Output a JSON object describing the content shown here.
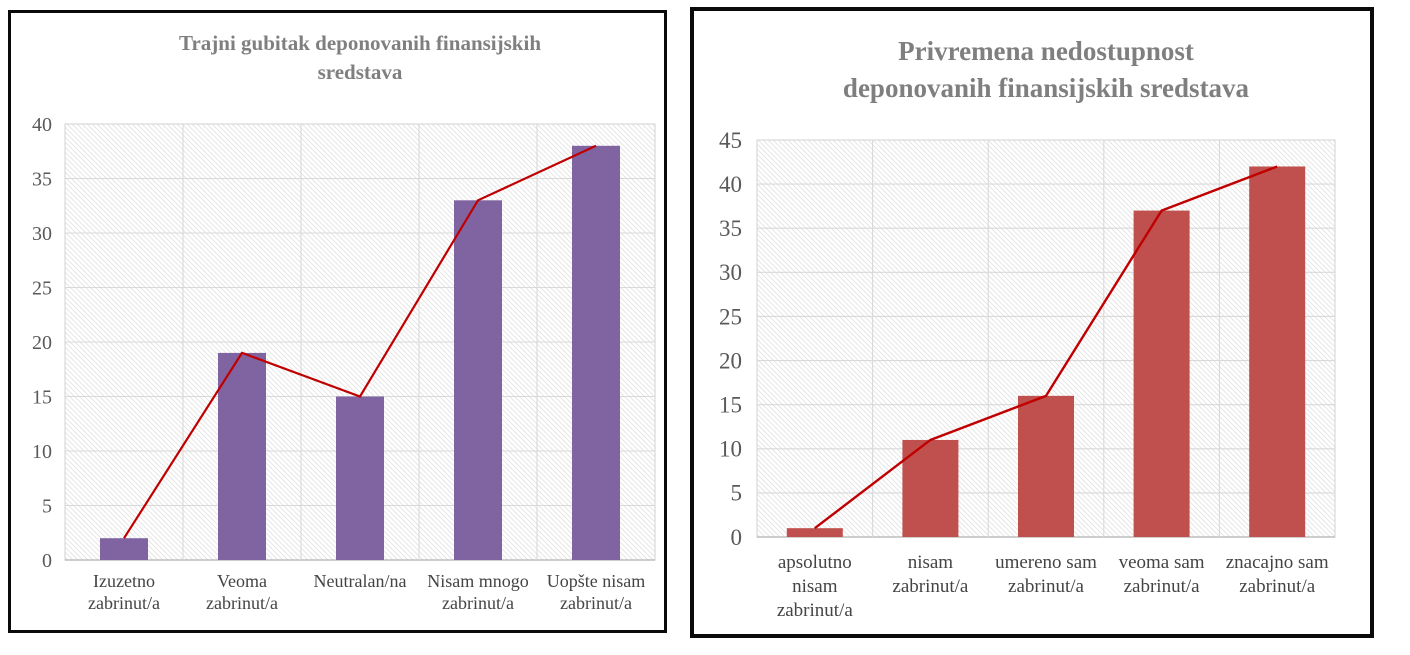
{
  "chart_data": [
    {
      "type": "bar",
      "title": "Trajni gubitak deponovanih finansijskih sredstava",
      "title_lines": [
        "Trajni gubitak deponovanih finansijskih",
        "sredstava"
      ],
      "categories": [
        "Izuzetno zabrinut/a",
        "Veoma zabrinut/a",
        "Neutralan/na",
        "Nisam mnogo zabrinut/a",
        "Uopšte nisam zabrinut/a"
      ],
      "category_label_lines": [
        [
          "Izuzetno",
          "zabrinut/a"
        ],
        [
          "Veoma",
          "zabrinut/a"
        ],
        [
          "Neutralan/na"
        ],
        [
          "Nisam mnogo",
          "zabrinut/a"
        ],
        [
          "Uopšte nisam",
          "zabrinut/a"
        ]
      ],
      "series": [
        {
          "name": "bars",
          "type": "bar",
          "values": [
            2,
            19,
            15,
            33,
            38
          ],
          "color": "#8064A2"
        },
        {
          "name": "trend-line",
          "type": "line",
          "values": [
            2,
            19,
            15,
            33,
            38
          ],
          "color": "#C00000"
        }
      ],
      "ylim": [
        0,
        40
      ],
      "yticks": [
        0,
        5,
        10,
        15,
        20,
        25,
        30,
        35,
        40
      ],
      "grid": true,
      "legend": "none",
      "plot_hatch_color": "#e2e2e2",
      "grid_color": "#d9d9d9",
      "axis_text_color": "#595959",
      "category_text_color": "#444444",
      "title_color": "#7f7f7f"
    },
    {
      "type": "bar",
      "title": "Privremena nedostupnost deponovanih finansijskih sredstava",
      "title_lines": [
        "Privremena nedostupnost",
        "deponovanih finansijskih sredstava"
      ],
      "categories": [
        "apsolutno nisam zabrinut/a",
        "nisam zabrinut/a",
        "umereno sam zabrinut/a",
        "veoma sam zabrinut/a",
        "znacajno sam zabrinut/a"
      ],
      "category_label_lines": [
        [
          "apsolutno",
          "nisam",
          "zabrinut/a"
        ],
        [
          "nisam",
          "zabrinut/a"
        ],
        [
          "umereno sam",
          "zabrinut/a"
        ],
        [
          "veoma sam",
          "zabrinut/a"
        ],
        [
          "znacajno sam",
          "zabrinut/a"
        ]
      ],
      "series": [
        {
          "name": "bars",
          "type": "bar",
          "values": [
            1,
            11,
            16,
            37,
            42
          ],
          "color": "#C0504D"
        },
        {
          "name": "trend-line",
          "type": "line",
          "values": [
            1,
            11,
            16,
            37,
            42
          ],
          "color": "#C00000"
        }
      ],
      "ylim": [
        0,
        45
      ],
      "yticks": [
        0,
        5,
        10,
        15,
        20,
        25,
        30,
        35,
        40,
        45
      ],
      "grid": true,
      "legend": "none",
      "plot_hatch_color": "#e2e2e2",
      "grid_color": "#d9d9d9",
      "axis_text_color": "#595959",
      "category_text_color": "#444444",
      "title_color": "#7f7f7f"
    }
  ]
}
